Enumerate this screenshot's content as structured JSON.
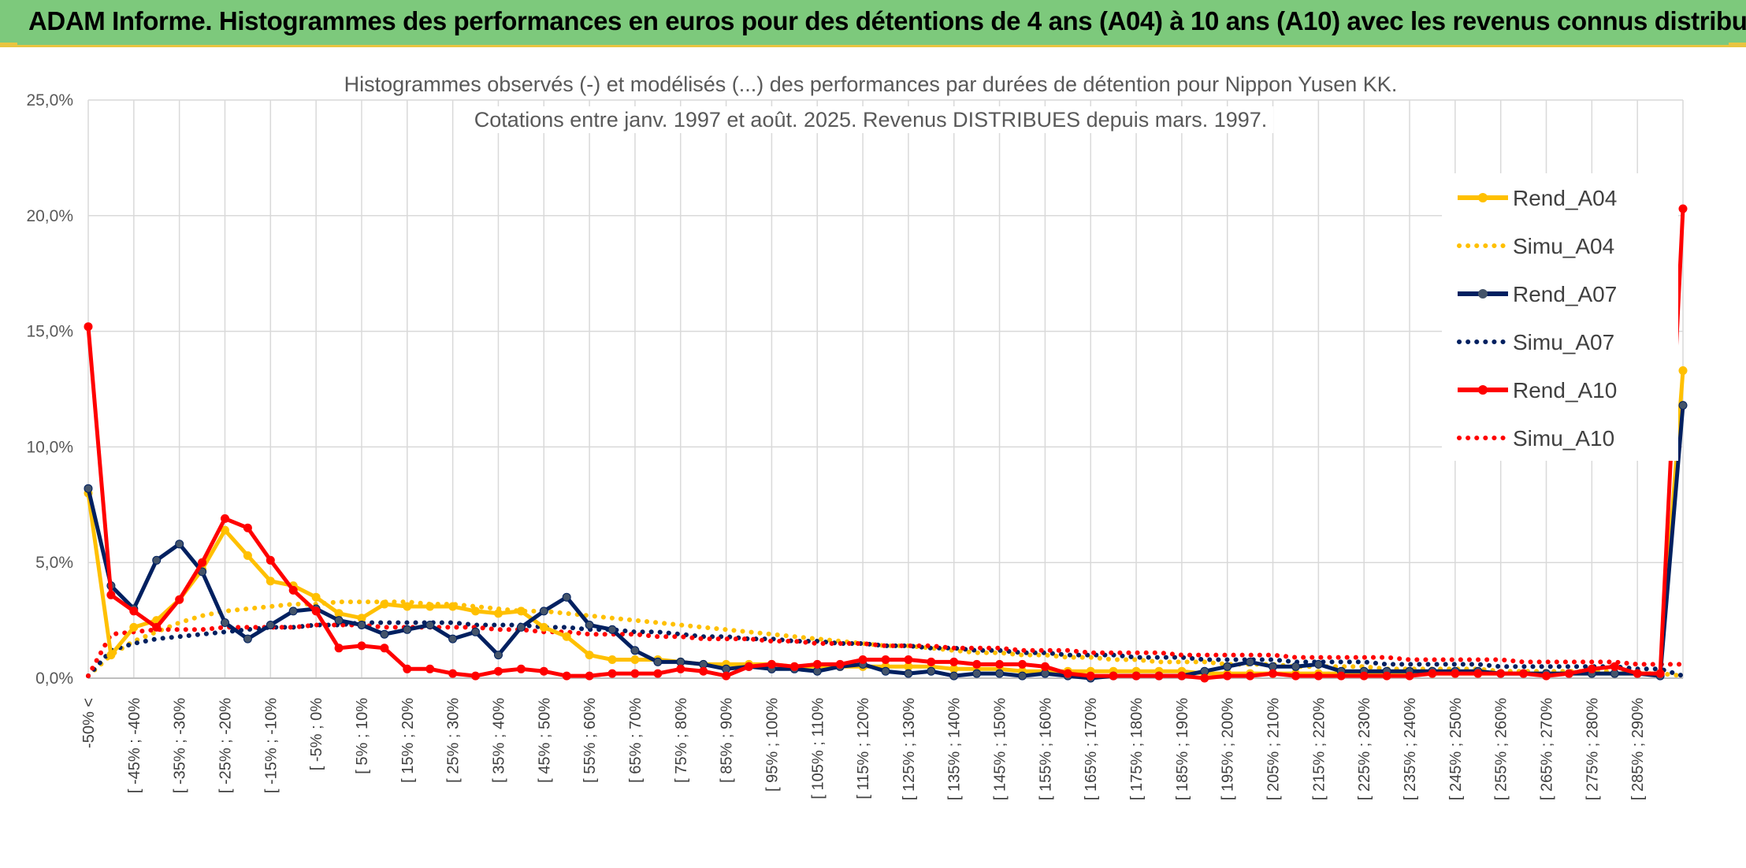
{
  "header": {
    "title": "ADAM Informe. Histogrammes des performances en euros pour des détentions de 4 ans (A04) à 10 ans (A10) avec les revenus connus distribués"
  },
  "chart_data": {
    "type": "line",
    "title": "Histogrammes observés (-) et modélisés (...) des performances par durées de détention pour Nippon Yusen KK.",
    "subtitle": "Cotations entre janv. 1997 et août. 2025. Revenus DISTRIBUES depuis mars. 1997.",
    "xlabel": "",
    "ylabel": "",
    "ylim": [
      0,
      25
    ],
    "y_ticks": [
      "0,0%",
      "5,0%",
      "10,0%",
      "15,0%",
      "20,0%",
      "25,0%"
    ],
    "grid": true,
    "legend_position": "right",
    "x_tick_labels": [
      "-50% <",
      "[ -45% ; -40%",
      "[ -35% ; -30%",
      "[ -25% ; -20%",
      "[ -15% ; -10%",
      "[ -5% ; 0%",
      "[ 5% ; 10%",
      "[ 15% ; 20%",
      "[ 25% ; 30%",
      "[ 35% ; 40%",
      "[ 45% ; 50%",
      "[ 55% ; 60%",
      "[ 65% ; 70%",
      "[ 75% ; 80%",
      "[ 85% ; 90%",
      "[ 95% ; 100%",
      "[ 105% ; 110%",
      "[ 115% ; 120%",
      "[ 125% ; 130%",
      "[ 135% ; 140%",
      "[ 145% ; 150%",
      "[ 155% ; 160%",
      "[ 165% ; 170%",
      "[ 175% ; 180%",
      "[ 185% ; 190%",
      "[ 195% ; 200%",
      "[ 205% ; 210%",
      "[ 215% ; 220%",
      "[ 225% ; 230%",
      "[ 235% ; 240%",
      "[ 245% ; 250%",
      "[ 255% ; 260%",
      "[ 265% ; 270%",
      "[ 275% ; 280%",
      "[ 285% ; 290%"
    ],
    "series": [
      {
        "name": "Rend_A04",
        "style": "solid",
        "color": "#ffc000",
        "values": [
          8.0,
          1.0,
          2.2,
          2.5,
          3.4,
          4.7,
          6.4,
          5.3,
          4.2,
          4.0,
          3.5,
          2.8,
          2.6,
          3.2,
          3.1,
          3.1,
          3.1,
          2.9,
          2.8,
          2.9,
          2.2,
          1.8,
          1.0,
          0.8,
          0.8,
          0.8,
          0.7,
          0.6,
          0.6,
          0.6,
          0.6,
          0.5,
          0.5,
          0.5,
          0.5,
          0.5,
          0.5,
          0.5,
          0.4,
          0.4,
          0.4,
          0.3,
          0.3,
          0.3,
          0.3,
          0.3,
          0.3,
          0.3,
          0.3,
          0.2,
          0.2,
          0.2,
          0.2,
          0.2,
          0.2,
          0.2,
          0.2,
          0.2,
          0.2,
          0.2,
          0.2,
          0.2,
          0.2,
          0.2,
          0.2,
          0.2,
          0.2,
          0.2,
          0.2,
          0.2,
          13.3
        ]
      },
      {
        "name": "Simu_A04",
        "style": "dotted",
        "color": "#ffc000",
        "values": [
          0.1,
          1.0,
          1.6,
          2.0,
          2.4,
          2.7,
          2.9,
          3.0,
          3.1,
          3.2,
          3.2,
          3.3,
          3.3,
          3.3,
          3.3,
          3.2,
          3.2,
          3.1,
          3.0,
          2.9,
          2.9,
          2.8,
          2.7,
          2.6,
          2.5,
          2.4,
          2.3,
          2.2,
          2.1,
          2.0,
          1.9,
          1.8,
          1.7,
          1.6,
          1.5,
          1.4,
          1.4,
          1.3,
          1.2,
          1.1,
          1.1,
          1.0,
          1.0,
          0.9,
          0.9,
          0.8,
          0.8,
          0.7,
          0.7,
          0.7,
          0.6,
          0.6,
          0.6,
          0.5,
          0.5,
          0.5,
          0.5,
          0.4,
          0.4,
          0.4,
          0.4,
          0.4,
          0.3,
          0.3,
          0.3,
          0.3,
          0.3,
          0.3,
          0.2,
          0.2,
          0.1
        ]
      },
      {
        "name": "Rend_A07",
        "style": "solid",
        "color": "#002060",
        "values": [
          8.2,
          4.0,
          3.0,
          5.1,
          5.8,
          4.6,
          2.4,
          1.7,
          2.3,
          2.9,
          3.0,
          2.5,
          2.3,
          1.9,
          2.1,
          2.3,
          1.7,
          2.0,
          1.0,
          2.2,
          2.9,
          3.5,
          2.3,
          2.1,
          1.2,
          0.7,
          0.7,
          0.6,
          0.4,
          0.5,
          0.4,
          0.4,
          0.3,
          0.5,
          0.6,
          0.3,
          0.2,
          0.3,
          0.1,
          0.2,
          0.2,
          0.1,
          0.2,
          0.1,
          0.0,
          0.1,
          0.1,
          0.1,
          0.1,
          0.3,
          0.5,
          0.7,
          0.5,
          0.5,
          0.6,
          0.3,
          0.3,
          0.3,
          0.3,
          0.3,
          0.3,
          0.3,
          0.2,
          0.2,
          0.2,
          0.2,
          0.2,
          0.2,
          0.2,
          0.1,
          11.8
        ]
      },
      {
        "name": "Simu_A07",
        "style": "dotted",
        "color": "#002060",
        "values": [
          0.1,
          1.2,
          1.5,
          1.7,
          1.8,
          1.9,
          2.0,
          2.1,
          2.2,
          2.2,
          2.3,
          2.3,
          2.4,
          2.4,
          2.4,
          2.4,
          2.4,
          2.3,
          2.3,
          2.3,
          2.2,
          2.2,
          2.1,
          2.1,
          2.0,
          2.0,
          1.9,
          1.8,
          1.8,
          1.7,
          1.7,
          1.6,
          1.6,
          1.5,
          1.5,
          1.4,
          1.4,
          1.3,
          1.3,
          1.2,
          1.2,
          1.1,
          1.1,
          1.0,
          1.0,
          1.0,
          0.9,
          0.9,
          0.9,
          0.8,
          0.8,
          0.8,
          0.8,
          0.7,
          0.7,
          0.7,
          0.7,
          0.6,
          0.6,
          0.6,
          0.6,
          0.6,
          0.5,
          0.5,
          0.5,
          0.5,
          0.5,
          0.5,
          0.4,
          0.4,
          0.1
        ]
      },
      {
        "name": "Rend_A10",
        "style": "solid",
        "color": "#ff0000",
        "values": [
          15.2,
          3.6,
          2.9,
          2.2,
          3.4,
          5.0,
          6.9,
          6.5,
          5.1,
          3.8,
          2.9,
          1.3,
          1.4,
          1.3,
          0.4,
          0.4,
          0.2,
          0.1,
          0.3,
          0.4,
          0.3,
          0.1,
          0.1,
          0.2,
          0.2,
          0.2,
          0.4,
          0.3,
          0.1,
          0.5,
          0.6,
          0.5,
          0.6,
          0.6,
          0.8,
          0.8,
          0.8,
          0.7,
          0.7,
          0.6,
          0.6,
          0.6,
          0.5,
          0.2,
          0.1,
          0.1,
          0.1,
          0.1,
          0.1,
          0.0,
          0.1,
          0.1,
          0.2,
          0.1,
          0.1,
          0.1,
          0.1,
          0.1,
          0.1,
          0.2,
          0.2,
          0.2,
          0.2,
          0.2,
          0.1,
          0.2,
          0.4,
          0.5,
          0.2,
          0.2,
          20.3
        ]
      },
      {
        "name": "Simu_A10",
        "style": "dotted",
        "color": "#ff0000",
        "values": [
          0.1,
          1.9,
          2.0,
          2.1,
          2.1,
          2.1,
          2.2,
          2.2,
          2.2,
          2.2,
          2.3,
          2.3,
          2.3,
          2.2,
          2.2,
          2.2,
          2.2,
          2.2,
          2.1,
          2.1,
          2.0,
          2.0,
          1.9,
          1.9,
          1.9,
          1.8,
          1.8,
          1.7,
          1.7,
          1.7,
          1.6,
          1.6,
          1.5,
          1.5,
          1.5,
          1.4,
          1.4,
          1.4,
          1.3,
          1.3,
          1.3,
          1.2,
          1.2,
          1.2,
          1.1,
          1.1,
          1.1,
          1.1,
          1.0,
          1.0,
          1.0,
          1.0,
          1.0,
          0.9,
          0.9,
          0.9,
          0.9,
          0.9,
          0.8,
          0.8,
          0.8,
          0.8,
          0.8,
          0.7,
          0.7,
          0.7,
          0.7,
          0.7,
          0.6,
          0.6,
          0.6
        ]
      }
    ]
  }
}
